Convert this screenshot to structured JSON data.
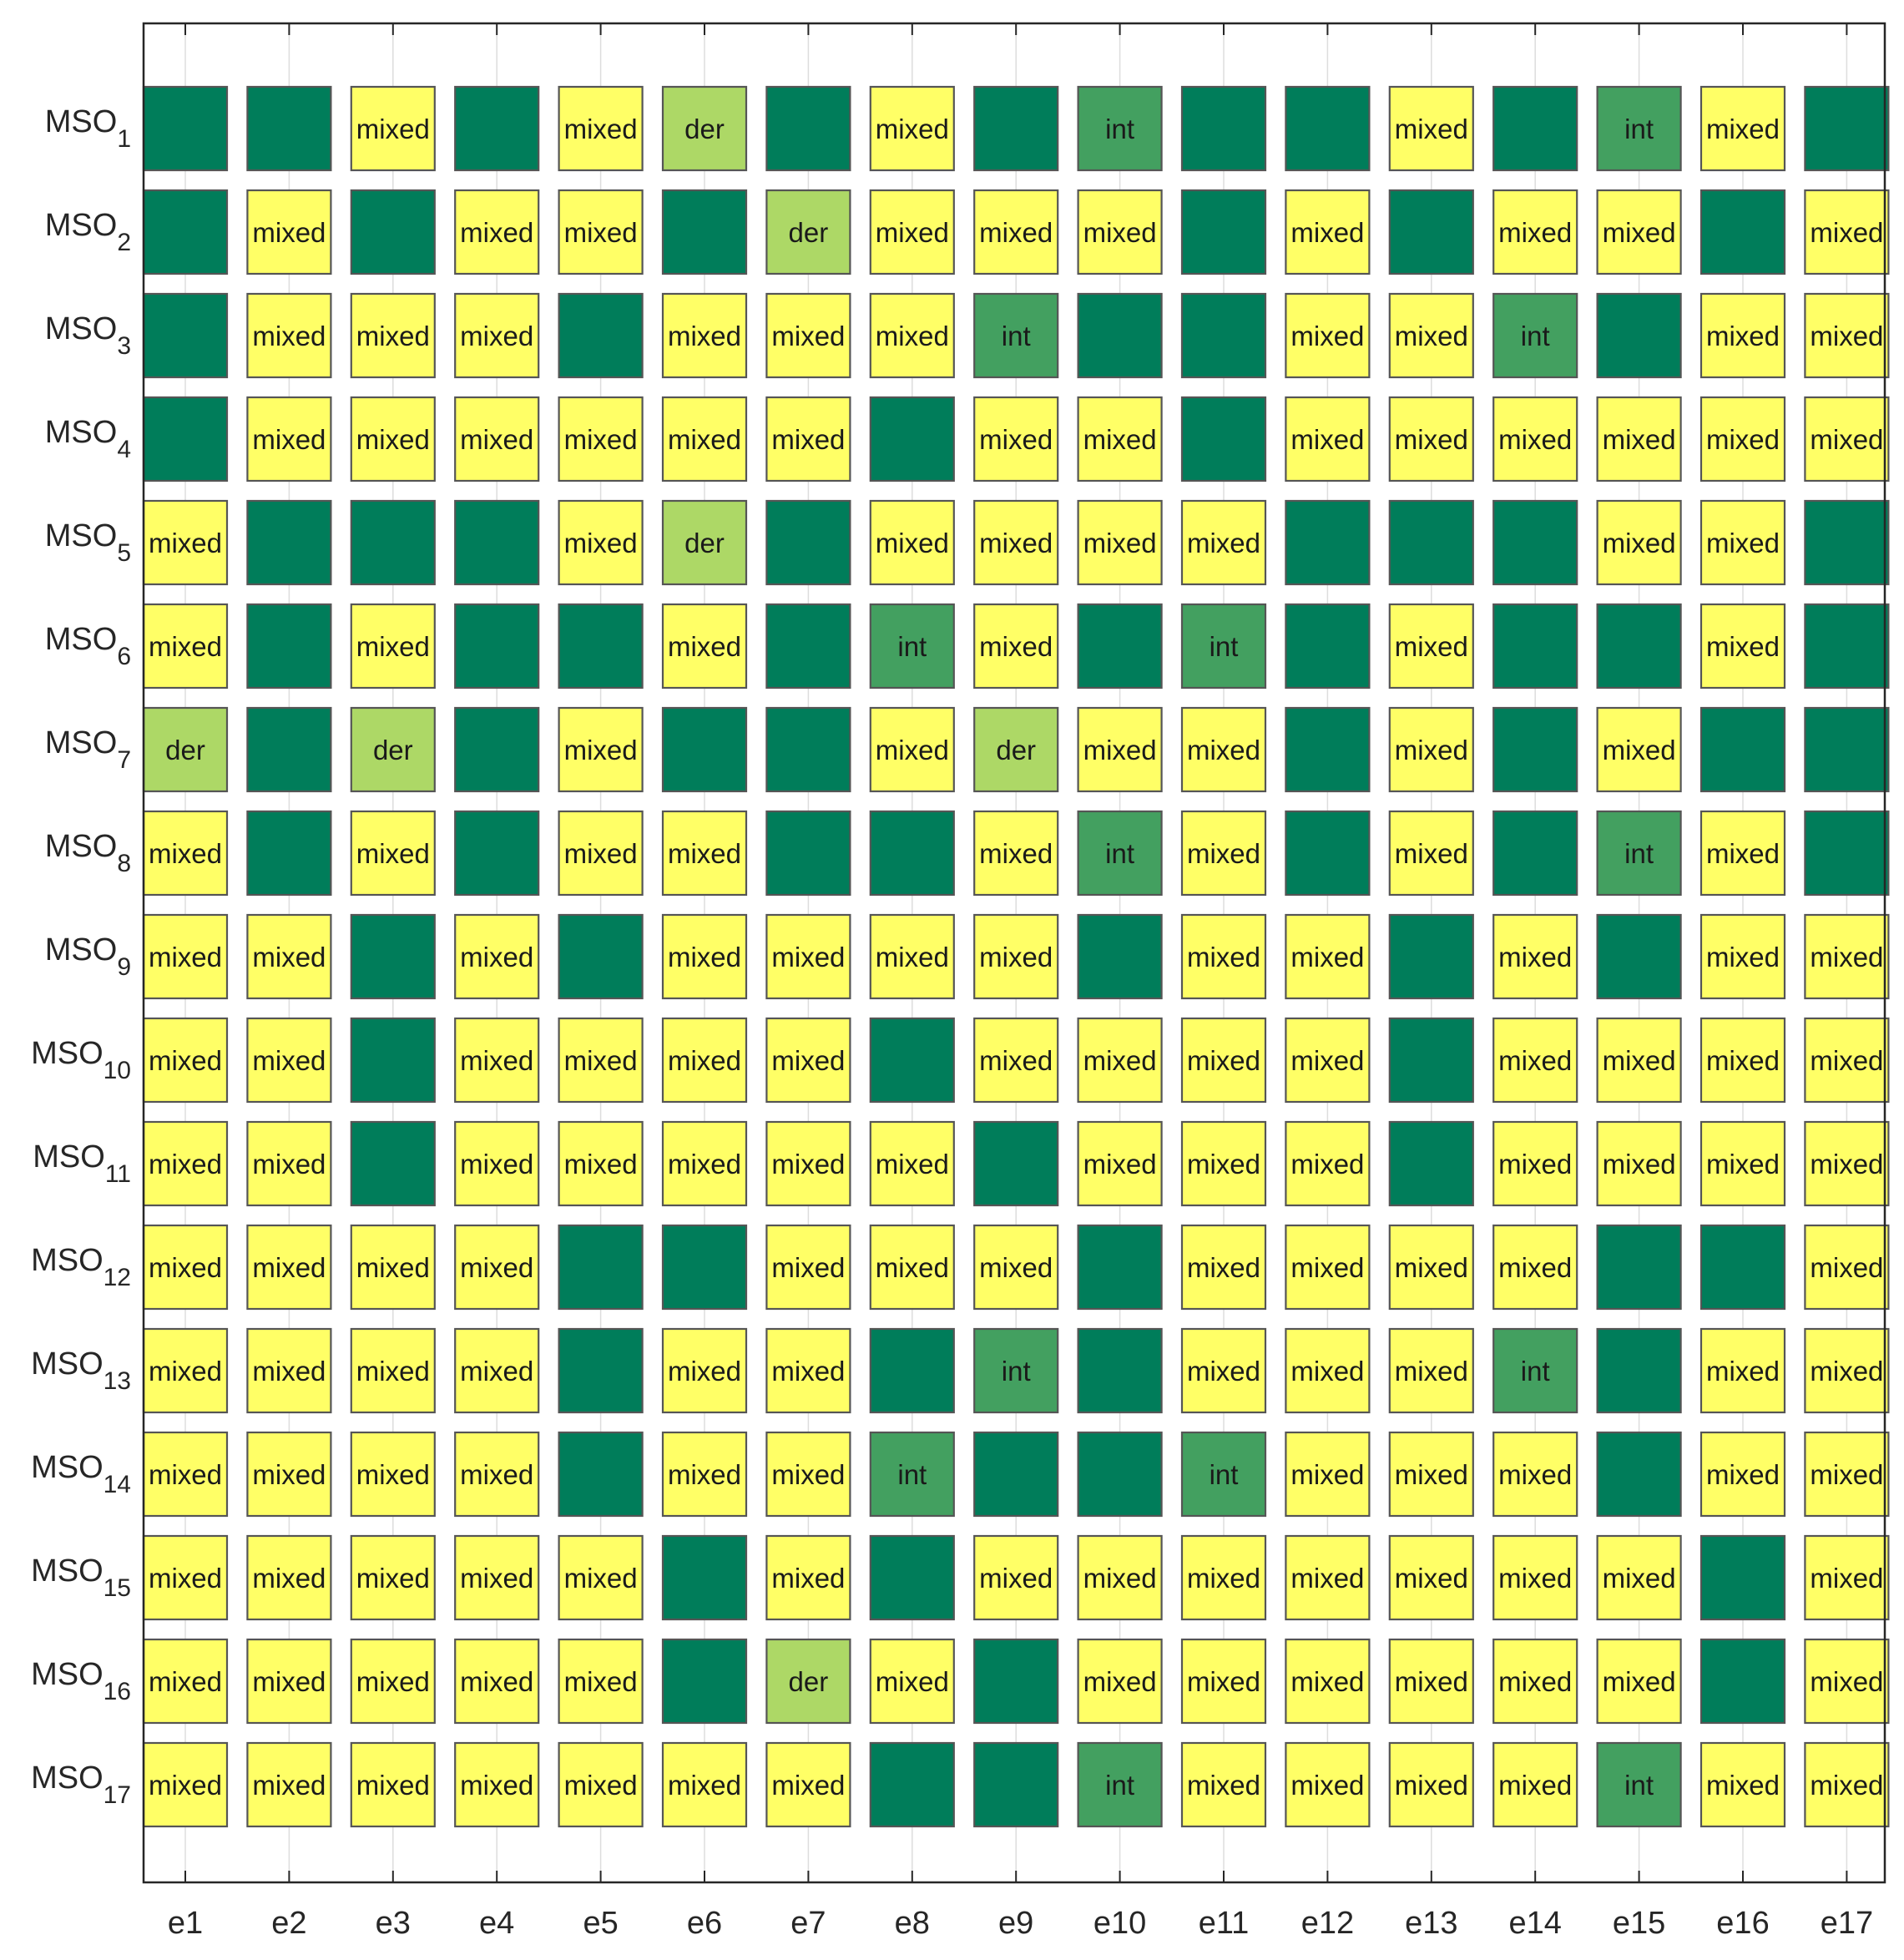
{
  "chart_data": {
    "type": "heatmap",
    "title": "",
    "xlabel": "",
    "ylabel": "",
    "grid": true,
    "rows": [
      {
        "name": "MSO",
        "sub": "1"
      },
      {
        "name": "MSO",
        "sub": "2"
      },
      {
        "name": "MSO",
        "sub": "3"
      },
      {
        "name": "MSO",
        "sub": "4"
      },
      {
        "name": "MSO",
        "sub": "5"
      },
      {
        "name": "MSO",
        "sub": "6"
      },
      {
        "name": "MSO",
        "sub": "7"
      },
      {
        "name": "MSO",
        "sub": "8"
      },
      {
        "name": "MSO",
        "sub": "9"
      },
      {
        "name": "MSO",
        "sub": "10"
      },
      {
        "name": "MSO",
        "sub": "11"
      },
      {
        "name": "MSO",
        "sub": "12"
      },
      {
        "name": "MSO",
        "sub": "13"
      },
      {
        "name": "MSO",
        "sub": "14"
      },
      {
        "name": "MSO",
        "sub": "15"
      },
      {
        "name": "MSO",
        "sub": "16"
      },
      {
        "name": "MSO",
        "sub": "17"
      }
    ],
    "columns": [
      "e1",
      "e2",
      "e3",
      "e4",
      "e5",
      "e6",
      "e7",
      "e8",
      "e9",
      "e10",
      "e11",
      "e12",
      "e13",
      "e14",
      "e15",
      "e16",
      "e17"
    ],
    "cells": [
      [
        "",
        "",
        "mixed",
        "",
        "mixed",
        "der",
        "",
        "mixed",
        "",
        "int",
        "",
        "",
        "mixed",
        "",
        "int",
        "mixed",
        ""
      ],
      [
        "",
        "mixed",
        "",
        "mixed",
        "mixed",
        "",
        "der",
        "mixed",
        "mixed",
        "mixed",
        "",
        "mixed",
        "",
        "mixed",
        "mixed",
        "",
        "mixed"
      ],
      [
        "",
        "mixed",
        "mixed",
        "mixed",
        "",
        "mixed",
        "mixed",
        "mixed",
        "int",
        "",
        "",
        "mixed",
        "mixed",
        "int",
        "",
        "mixed",
        "mixed"
      ],
      [
        "",
        "mixed",
        "mixed",
        "mixed",
        "mixed",
        "mixed",
        "mixed",
        "",
        "mixed",
        "mixed",
        "",
        "mixed",
        "mixed",
        "mixed",
        "mixed",
        "mixed",
        "mixed"
      ],
      [
        "mixed",
        "",
        "",
        "",
        "mixed",
        "der",
        "",
        "mixed",
        "mixed",
        "mixed",
        "mixed",
        "",
        "",
        "",
        "mixed",
        "mixed",
        ""
      ],
      [
        "mixed",
        "",
        "mixed",
        "",
        "",
        "mixed",
        "",
        "int",
        "mixed",
        "",
        "int",
        "",
        "mixed",
        "",
        "",
        "mixed",
        ""
      ],
      [
        "der",
        "",
        "der",
        "",
        "mixed",
        "",
        "",
        "mixed",
        "der",
        "mixed",
        "mixed",
        "",
        "mixed",
        "",
        "mixed",
        "",
        ""
      ],
      [
        "mixed",
        "",
        "mixed",
        "",
        "mixed",
        "mixed",
        "",
        "",
        "mixed",
        "int",
        "mixed",
        "",
        "mixed",
        "",
        "int",
        "mixed",
        ""
      ],
      [
        "mixed",
        "mixed",
        "",
        "mixed",
        "",
        "mixed",
        "mixed",
        "mixed",
        "mixed",
        "",
        "mixed",
        "mixed",
        "",
        "mixed",
        "",
        "mixed",
        "mixed"
      ],
      [
        "mixed",
        "mixed",
        "",
        "mixed",
        "mixed",
        "mixed",
        "mixed",
        "",
        "mixed",
        "mixed",
        "mixed",
        "mixed",
        "",
        "mixed",
        "mixed",
        "mixed",
        "mixed"
      ],
      [
        "mixed",
        "mixed",
        "",
        "mixed",
        "mixed",
        "mixed",
        "mixed",
        "mixed",
        "",
        "mixed",
        "mixed",
        "mixed",
        "",
        "mixed",
        "mixed",
        "mixed",
        "mixed"
      ],
      [
        "mixed",
        "mixed",
        "mixed",
        "mixed",
        "",
        "",
        "mixed",
        "mixed",
        "mixed",
        "",
        "mixed",
        "mixed",
        "mixed",
        "mixed",
        "",
        "",
        "mixed"
      ],
      [
        "mixed",
        "mixed",
        "mixed",
        "mixed",
        "",
        "mixed",
        "mixed",
        "",
        "int",
        "",
        "mixed",
        "mixed",
        "mixed",
        "int",
        "",
        "mixed",
        "mixed"
      ],
      [
        "mixed",
        "mixed",
        "mixed",
        "mixed",
        "",
        "mixed",
        "mixed",
        "int",
        "",
        "",
        "int",
        "mixed",
        "mixed",
        "mixed",
        "",
        "mixed",
        "mixed"
      ],
      [
        "mixed",
        "mixed",
        "mixed",
        "mixed",
        "mixed",
        "",
        "mixed",
        "",
        "mixed",
        "mixed",
        "mixed",
        "mixed",
        "mixed",
        "mixed",
        "mixed",
        "",
        "mixed"
      ],
      [
        "mixed",
        "mixed",
        "mixed",
        "mixed",
        "mixed",
        "",
        "der",
        "mixed",
        "",
        "mixed",
        "mixed",
        "mixed",
        "mixed",
        "mixed",
        "mixed",
        "",
        "mixed"
      ],
      [
        "mixed",
        "mixed",
        "mixed",
        "mixed",
        "mixed",
        "mixed",
        "mixed",
        "",
        "",
        "int",
        "mixed",
        "mixed",
        "mixed",
        "mixed",
        "int",
        "mixed",
        "mixed"
      ]
    ],
    "colors": {
      "mixed": "#ffff66",
      "der": "#add866",
      "int": "#43a060",
      "": "#007d5a",
      "edge": "#555555",
      "grid": "#dddddd",
      "axis": "#262626"
    }
  }
}
